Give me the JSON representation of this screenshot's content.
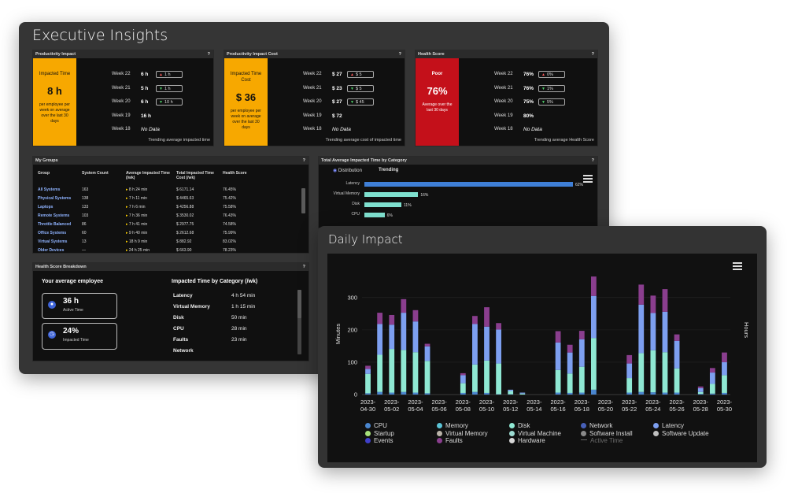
{
  "exec": {
    "title": "Executive Insights",
    "prod": {
      "title": "Productivity Impact",
      "help": "?",
      "kpi_label": "Impacted Time",
      "kpi_value": "8 h",
      "kpi_sub": "per employee per week on average over the last 30 days",
      "rows": [
        {
          "week": "Week 22",
          "value": "6 h",
          "chip": "1 h",
          "dir": "up"
        },
        {
          "week": "Week 21",
          "value": "5 h",
          "chip": "1 h",
          "dir": "down"
        },
        {
          "week": "Week 20",
          "value": "6 h",
          "chip": "10 h",
          "dir": "down"
        },
        {
          "week": "Week 19",
          "value": "16 h",
          "chip": "",
          "dir": ""
        },
        {
          "week": "Week 18",
          "value": "No Data",
          "chip": "",
          "dir": ""
        }
      ],
      "trend": "Trending average impacted time"
    },
    "cost": {
      "title": "Productivity Impact Cost",
      "help": "?",
      "kpi_label": "Impacted Time Cost",
      "kpi_value": "$ 36",
      "kpi_sub": "per employee per week on average over the last 30 days",
      "rows": [
        {
          "week": "Week 22",
          "value": "$ 27",
          "chip": "$ 5",
          "dir": "up"
        },
        {
          "week": "Week 21",
          "value": "$ 23",
          "chip": "$ 5",
          "dir": "down"
        },
        {
          "week": "Week 20",
          "value": "$ 27",
          "chip": "$ 45",
          "dir": "down"
        },
        {
          "week": "Week 19",
          "value": "$ 72",
          "chip": "",
          "dir": ""
        },
        {
          "week": "Week 18",
          "value": "No Data",
          "chip": "",
          "dir": ""
        }
      ],
      "trend": "Trending average cost of impacted time"
    },
    "health": {
      "title": "Health Score",
      "help": "?",
      "kpi_label": "Poor",
      "kpi_value": "76%",
      "kpi_sub": "Average over the last 30 days",
      "rows": [
        {
          "week": "Week 22",
          "value": "76%",
          "chip": "0%",
          "dir": "up"
        },
        {
          "week": "Week 21",
          "value": "76%",
          "chip": "1%",
          "dir": "down"
        },
        {
          "week": "Week 20",
          "value": "75%",
          "chip": "5%",
          "dir": "down"
        },
        {
          "week": "Week 19",
          "value": "80%",
          "chip": "",
          "dir": ""
        },
        {
          "week": "Week 18",
          "value": "No Data",
          "chip": "",
          "dir": ""
        }
      ],
      "trend": "Trending average Health Score"
    },
    "groups": {
      "title": "My Groups",
      "help": "?",
      "headers": [
        "Group",
        "System Count",
        "Average Impacted Time (/wk)",
        "Total Impacted Time Cost (/wk)",
        "Health Score"
      ],
      "rows": [
        [
          "All Systems",
          "163",
          "8 h 24 min",
          "$ 6171.14",
          "76.45%"
        ],
        [
          "Physical Systems",
          "138",
          "7 h 11 min",
          "$ 4465.63",
          "75.42%"
        ],
        [
          "Laptops",
          "133",
          "7 h 6 min",
          "$ 4256.88",
          "75.58%"
        ],
        [
          "Remote Systems",
          "103",
          "7 h 36 min",
          "$ 3530.02",
          "76.43%"
        ],
        [
          "Throttle Balanced",
          "86",
          "7 h 41 min",
          "$ 2977.75",
          "74.58%"
        ],
        [
          "Office Systems",
          "60",
          "9 h 40 min",
          "$ 2612.68",
          "75.99%"
        ],
        [
          "Virtual Systems",
          "13",
          "18 h 9 min",
          "$ 882.92",
          "83.02%"
        ],
        [
          "Older Devices",
          "—",
          "24 h 25 min",
          "$ 663.90",
          "78.23%"
        ]
      ]
    },
    "category": {
      "title": "Total Average Impacted Time by Category",
      "help": "?",
      "tabs": [
        "Distribution",
        "Trending"
      ],
      "items": [
        {
          "label": "Latency",
          "pct": 62,
          "text": "62%"
        },
        {
          "label": "Virtual Memory",
          "pct": 16,
          "text": "16%"
        },
        {
          "label": "Disk",
          "pct": 11,
          "text": "11%"
        },
        {
          "label": "CPU",
          "pct": 6,
          "text": "6%"
        }
      ]
    },
    "breakdown": {
      "title": "Health Score Breakdown",
      "help": "?",
      "left_title": "Your average employee",
      "active_value": "36 h",
      "active_label": "Active Time",
      "impacted_value": "24%",
      "impacted_label": "Impacted Time",
      "right_title": "Impacted Time by Category (/wk)",
      "rows": [
        {
          "label": "Latency",
          "value": "4 h 54 min"
        },
        {
          "label": "Virtual Memory",
          "value": "1 h 15 min"
        },
        {
          "label": "Disk",
          "value": "50 min"
        },
        {
          "label": "CPU",
          "value": "28 min"
        },
        {
          "label": "Faults",
          "value": "23 min"
        },
        {
          "label": "Network",
          "value": ""
        }
      ]
    }
  },
  "daily": {
    "title": "Daily Impact",
    "y_left_label": "Minutes",
    "y_right_label": "Hours",
    "legend": [
      {
        "name": "CPU",
        "color": "#4a86cf"
      },
      {
        "name": "Memory",
        "color": "#5bc3d6"
      },
      {
        "name": "Disk",
        "color": "#8fe8d3"
      },
      {
        "name": "Network",
        "color": "#4760b8"
      },
      {
        "name": "Latency",
        "color": "#7d9ff0"
      },
      {
        "name": "Startup",
        "color": "#a7e07a"
      },
      {
        "name": "Virtual Memory",
        "color": "#b9b3a8"
      },
      {
        "name": "Virtual Machine",
        "color": "#9ddcd2"
      },
      {
        "name": "Software Install",
        "color": "#8a8a8a"
      },
      {
        "name": "Software Update",
        "color": "#c0c0c0"
      },
      {
        "name": "Events",
        "color": "#3f3fc9"
      },
      {
        "name": "Faults",
        "color": "#8a3e8e"
      },
      {
        "name": "Hardware",
        "color": "#d8d8d8"
      },
      {
        "name": "Active Time",
        "color": "#777777"
      }
    ]
  },
  "chart_data": {
    "type": "bar",
    "title": "Daily Impact",
    "ylabel": "Minutes",
    "ylabel_right": "Hours",
    "ylim": [
      0,
      375
    ],
    "yticks": [
      0,
      100,
      200,
      300
    ],
    "stacked": true,
    "xtick_labels": [
      "2023-04-30",
      "2023-05-02",
      "2023-05-04",
      "2023-05-06",
      "2023-05-08",
      "2023-05-10",
      "2023-05-12",
      "2023-05-14",
      "2023-05-16",
      "2023-05-18",
      "2023-05-20",
      "2023-05-22",
      "2023-05-24",
      "2023-05-26",
      "2023-05-28",
      "2023-05-30"
    ],
    "categories": [
      "2023-04-30",
      "2023-05-01",
      "2023-05-02",
      "2023-05-03",
      "2023-05-04",
      "2023-05-05",
      "2023-05-06",
      "2023-05-07",
      "2023-05-08",
      "2023-05-09",
      "2023-05-10",
      "2023-05-11",
      "2023-05-12",
      "2023-05-13",
      "2023-05-14",
      "2023-05-15",
      "2023-05-16",
      "2023-05-17",
      "2023-05-18",
      "2023-05-19",
      "2023-05-20",
      "2023-05-21",
      "2023-05-22",
      "2023-05-23",
      "2023-05-24",
      "2023-05-25",
      "2023-05-26",
      "2023-05-27",
      "2023-05-28",
      "2023-05-29",
      "2023-05-30"
    ],
    "series": [
      {
        "name": "CPU",
        "color": "#4a86cf",
        "values": [
          4,
          8,
          6,
          8,
          6,
          4,
          0,
          0,
          5,
          8,
          5,
          1,
          1,
          0,
          0,
          0,
          6,
          5,
          6,
          15,
          0,
          0,
          6,
          8,
          7,
          6,
          6,
          0,
          2,
          3,
          5
        ]
      },
      {
        "name": "Disk",
        "color": "#8fe8d3",
        "values": [
          60,
          115,
          135,
          130,
          125,
          100,
          0,
          0,
          30,
          85,
          100,
          95,
          10,
          3,
          0,
          0,
          70,
          60,
          80,
          160,
          0,
          0,
          45,
          120,
          130,
          125,
          75,
          0,
          6,
          30,
          55
        ]
      },
      {
        "name": "Latency",
        "color": "#7d9ff0",
        "values": [
          15,
          95,
          75,
          115,
          95,
          45,
          0,
          0,
          25,
          125,
          105,
          105,
          4,
          3,
          0,
          0,
          85,
          65,
          85,
          130,
          0,
          0,
          45,
          150,
          115,
          125,
          85,
          0,
          12,
          35,
          40
        ]
      },
      {
        "name": "Faults",
        "color": "#8a3e8e",
        "values": [
          10,
          35,
          30,
          42,
          35,
          8,
          0,
          0,
          6,
          25,
          60,
          20,
          0,
          0,
          0,
          0,
          35,
          24,
          26,
          60,
          0,
          0,
          26,
          62,
          54,
          70,
          20,
          0,
          5,
          14,
          30
        ]
      }
    ]
  }
}
